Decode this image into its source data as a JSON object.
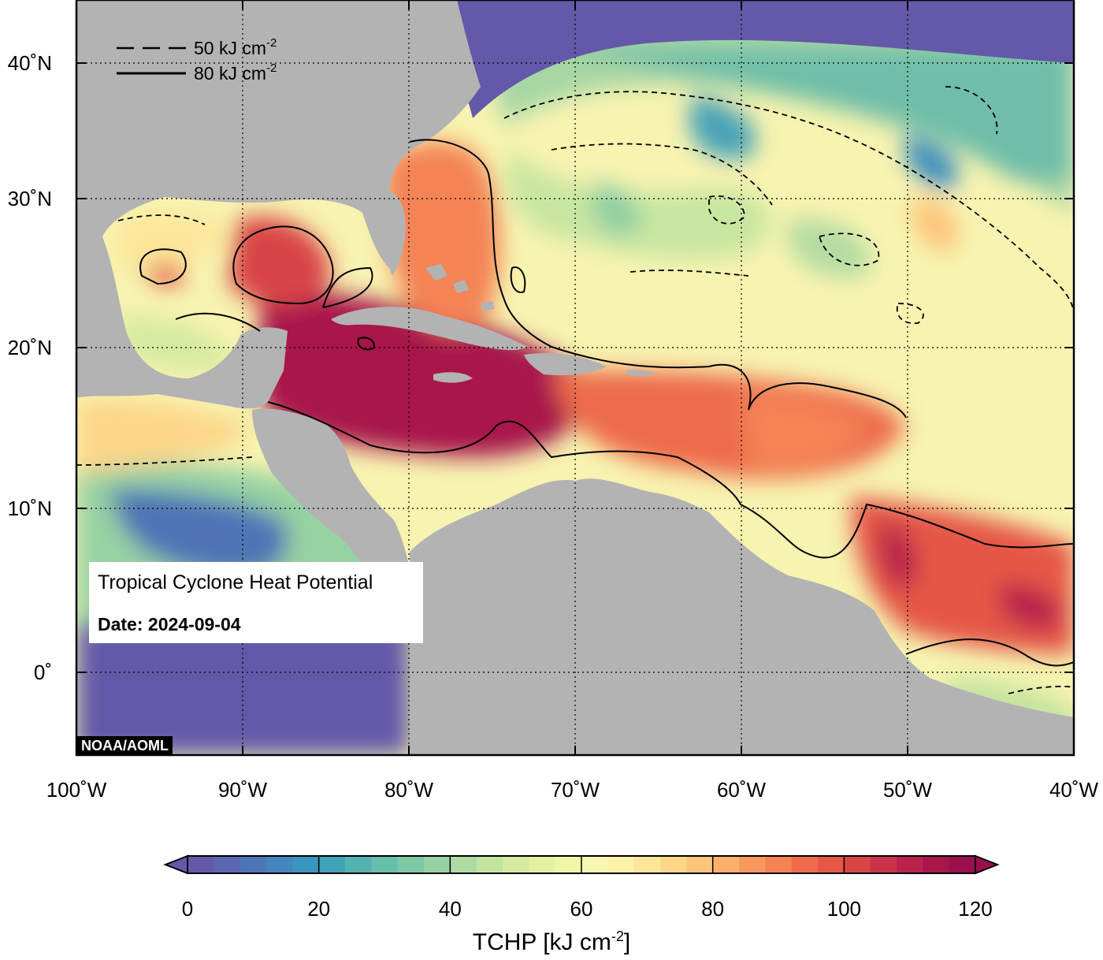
{
  "map": {
    "info_title": "Tropical Cyclone Heat Potential",
    "info_date": "Date: 2024-09-04",
    "credit": "NOAA/AOML",
    "legend": [
      {
        "style": "dashed",
        "value": "50",
        "unit": "kJ cm",
        "exp": "-2"
      },
      {
        "style": "solid",
        "value": "80",
        "unit": "kJ cm",
        "exp": "-2"
      }
    ],
    "lon_labels": [
      "100˚W",
      "90˚W",
      "80˚W",
      "70˚W",
      "60˚W",
      "50˚W",
      "40˚W"
    ],
    "lat_labels": [
      "40˚N",
      "30˚N",
      "20˚N",
      "10˚N",
      "0˚"
    ],
    "lon_values": [
      -100,
      -90,
      -80,
      -70,
      -60,
      -50,
      -40
    ],
    "lat_values": [
      40,
      30,
      20,
      10,
      0
    ]
  },
  "colorbar": {
    "title_main": "TCHP [kJ cm",
    "title_exp": "-2",
    "title_end": "]",
    "ticks": [
      "0",
      "20",
      "40",
      "60",
      "80",
      "100",
      "120"
    ],
    "tick_values": [
      0,
      20,
      40,
      60,
      80,
      100,
      120
    ],
    "colors": [
      "#6459a8",
      "#5a66b0",
      "#4f75b6",
      "#4486bd",
      "#3b96bf",
      "#3fa4b8",
      "#52b3b1",
      "#67bea9",
      "#7fc8a4",
      "#97d2a3",
      "#aedba2",
      "#c3e39f",
      "#d5eaa0",
      "#e4f0a2",
      "#f0f5a8",
      "#f8f8b3",
      "#fcf2aa",
      "#fde69a",
      "#fdd689",
      "#fdc57b",
      "#fbb06d",
      "#f89a5f",
      "#f48354",
      "#ee6c4b",
      "#e55747",
      "#d94447",
      "#ca3349",
      "#b9234b",
      "#a8164c",
      "#9a0f4d"
    ],
    "min": 0,
    "max": 120
  }
}
